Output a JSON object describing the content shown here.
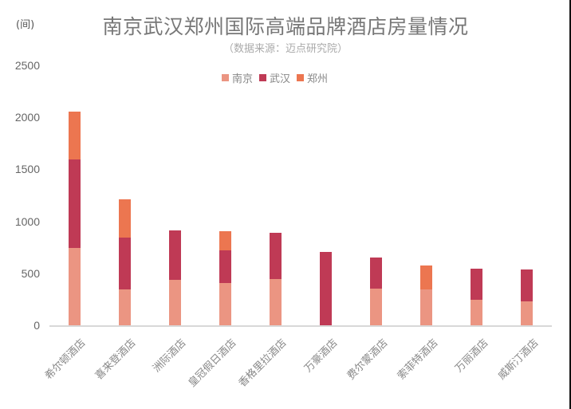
{
  "chart_data": {
    "type": "bar",
    "stacked": true,
    "title": "南京武汉郑州国际高端品牌酒店房量情况",
    "subtitle": "（数据来源：迈点研究院）",
    "ylabel": "(间)",
    "xlabel": "",
    "ylim": [
      0,
      2500
    ],
    "yticks": [
      0,
      500,
      1000,
      1500,
      2000,
      2500
    ],
    "grid": false,
    "legend_position": "top",
    "categories": [
      "希尔顿酒店",
      "喜来登酒店",
      "洲际酒店",
      "皇冠假日酒店",
      "香格里拉酒店",
      "万豪酒店",
      "费尔蒙酒店",
      "索菲特酒店",
      "万丽酒店",
      "威斯汀酒店"
    ],
    "series": [
      {
        "name": "南京",
        "color": "#EB9582",
        "values": [
          743,
          345,
          437,
          406,
          444,
          0,
          352,
          345,
          245,
          230
        ]
      },
      {
        "name": "武汉",
        "color": "#BF3A55",
        "values": [
          851,
          498,
          475,
          314,
          445,
          705,
          299,
          0,
          299,
          306
        ]
      },
      {
        "name": "郑州",
        "color": "#EC7650",
        "values": [
          460,
          368,
          0,
          184,
          0,
          0,
          0,
          230,
          0,
          0
        ]
      }
    ]
  },
  "header": {
    "unit": "(间)",
    "title": "南京武汉郑州国际高端品牌酒店房量情况",
    "subtitle": "（数据来源：迈点研究院）"
  },
  "legend": [
    {
      "label": "南京",
      "color": "#EB9582"
    },
    {
      "label": "武汉",
      "color": "#BF3A55"
    },
    {
      "label": "郑州",
      "color": "#EC7650"
    }
  ],
  "yaxis": {
    "ticks": [
      "0",
      "500",
      "1000",
      "1500",
      "2000",
      "2500"
    ]
  }
}
